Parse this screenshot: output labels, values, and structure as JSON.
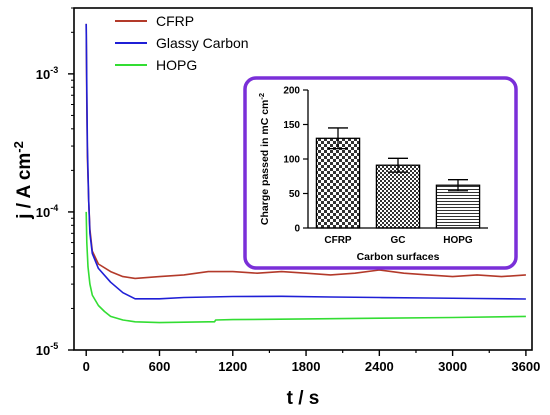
{
  "chart_data": [
    {
      "type": "line",
      "xlabel": "t / s",
      "ylabel": "j / A cm",
      "ylabel_superscript": "-2",
      "xlim": [
        -100,
        3650
      ],
      "ylim": [
        1e-05,
        0.003
      ],
      "yscale": "log",
      "xticks": [
        0,
        600,
        1200,
        1800,
        2400,
        3000,
        3600
      ],
      "yticks": [
        {
          "value": 1e-05,
          "base": "10",
          "exp": "-5"
        },
        {
          "value": 0.0001,
          "base": "10",
          "exp": "-4"
        },
        {
          "value": 0.001,
          "base": "10",
          "exp": "-3"
        }
      ],
      "legend_position": "top-left",
      "series": [
        {
          "name": "CFRP",
          "color": "#b33a2a",
          "points": [
            [
              0,
              0.0023
            ],
            [
              5,
              0.0006
            ],
            [
              10,
              0.00025
            ],
            [
              20,
              0.00012
            ],
            [
              30,
              7.5e-05
            ],
            [
              50,
              5.2e-05
            ],
            [
              100,
              4.2e-05
            ],
            [
              200,
              3.7e-05
            ],
            [
              300,
              3.4e-05
            ],
            [
              400,
              3.3e-05
            ],
            [
              600,
              3.4e-05
            ],
            [
              800,
              3.5e-05
            ],
            [
              1000,
              3.7e-05
            ],
            [
              1200,
              3.7e-05
            ],
            [
              1400,
              3.6e-05
            ],
            [
              1600,
              3.7e-05
            ],
            [
              1800,
              3.6e-05
            ],
            [
              2000,
              3.5e-05
            ],
            [
              2200,
              3.6e-05
            ],
            [
              2400,
              3.8e-05
            ],
            [
              2600,
              3.6e-05
            ],
            [
              2800,
              3.5e-05
            ],
            [
              3000,
              3.4e-05
            ],
            [
              3200,
              3.5e-05
            ],
            [
              3400,
              3.4e-05
            ],
            [
              3600,
              3.5e-05
            ]
          ]
        },
        {
          "name": "Glassy Carbon",
          "color": "#1f1fd6",
          "points": [
            [
              0,
              0.0023
            ],
            [
              5,
              0.0008
            ],
            [
              10,
              0.0003
            ],
            [
              20,
              0.00012
            ],
            [
              30,
              7e-05
            ],
            [
              50,
              5e-05
            ],
            [
              100,
              3.9e-05
            ],
            [
              200,
              3.1e-05
            ],
            [
              300,
              2.6e-05
            ],
            [
              400,
              2.35e-05
            ],
            [
              600,
              2.35e-05
            ],
            [
              800,
              2.4e-05
            ],
            [
              1000,
              2.42e-05
            ],
            [
              1200,
              2.44e-05
            ],
            [
              1600,
              2.45e-05
            ],
            [
              2000,
              2.42e-05
            ],
            [
              2400,
              2.4e-05
            ],
            [
              2800,
              2.38e-05
            ],
            [
              3200,
              2.36e-05
            ],
            [
              3600,
              2.34e-05
            ]
          ]
        },
        {
          "name": "HOPG",
          "color": "#33dd33",
          "points": [
            [
              0,
              0.0001
            ],
            [
              5,
              6e-05
            ],
            [
              15,
              4e-05
            ],
            [
              30,
              3e-05
            ],
            [
              50,
              2.5e-05
            ],
            [
              100,
              2.1e-05
            ],
            [
              150,
              1.9e-05
            ],
            [
              200,
              1.75e-05
            ],
            [
              300,
              1.65e-05
            ],
            [
              400,
              1.6e-05
            ],
            [
              600,
              1.58e-05
            ],
            [
              800,
              1.59e-05
            ],
            [
              1000,
              1.6e-05
            ],
            [
              1050,
              1.6e-05
            ],
            [
              1060,
              1.65e-05
            ],
            [
              1200,
              1.66e-05
            ],
            [
              1800,
              1.68e-05
            ],
            [
              2400,
              1.7e-05
            ],
            [
              3000,
              1.72e-05
            ],
            [
              3600,
              1.75e-05
            ]
          ]
        }
      ]
    },
    {
      "type": "bar",
      "xlabel": "Carbon surfaces",
      "ylabel": "Charge passed in mC cm",
      "ylabel_superscript": "-2",
      "categories": [
        "CFRP",
        "GC",
        "HOPG"
      ],
      "values": [
        130,
        91,
        62
      ],
      "errors": [
        15,
        10,
        8
      ],
      "patterns": [
        "checker-coarse",
        "checker-fine",
        "horizontal-lines"
      ],
      "ylim": [
        0,
        200
      ],
      "yticks": [
        0,
        50,
        100,
        150,
        200
      ],
      "frame_color": "#7a2fd8"
    }
  ]
}
